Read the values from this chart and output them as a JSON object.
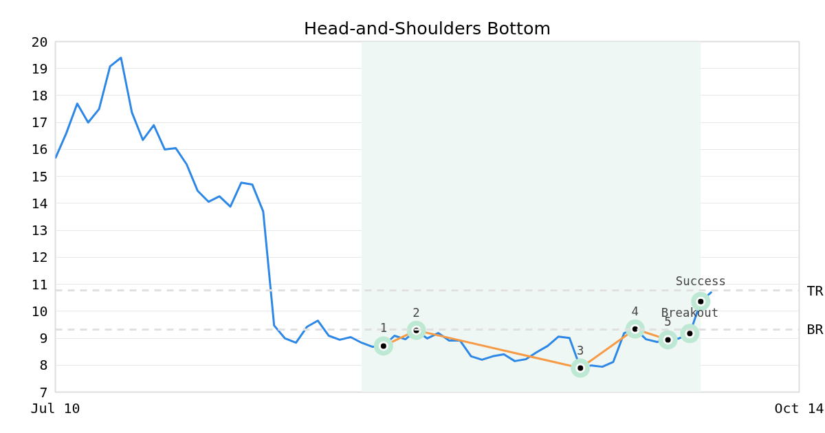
{
  "chart_data": {
    "type": "line",
    "title": "Head-and-Shoulders Bottom",
    "categories": [
      "Jul 10",
      null,
      null,
      null,
      null,
      null,
      null,
      null,
      null,
      null,
      null,
      null,
      null,
      null,
      null,
      null,
      null,
      null,
      null,
      null,
      null,
      null,
      null,
      null,
      null,
      null,
      null,
      null,
      null,
      null,
      null,
      null,
      null,
      null,
      null,
      null,
      null,
      null,
      null,
      null,
      null,
      null,
      null,
      null,
      null,
      null,
      null,
      null,
      null,
      null,
      null,
      null,
      null,
      null,
      null,
      null,
      null,
      null,
      null,
      null,
      null,
      null,
      null,
      null,
      null,
      null,
      null,
      null,
      "Oct 14"
    ],
    "ylim": [
      7,
      20
    ],
    "yticks": [
      7,
      8,
      9,
      10,
      11,
      12,
      13,
      14,
      15,
      16,
      17,
      18,
      19,
      20
    ],
    "grid": "y",
    "series": [
      {
        "color": "#2d87e6",
        "values": [
          15.67,
          16.6,
          17.7,
          17.0,
          17.5,
          19.08,
          19.4,
          17.37,
          16.35,
          16.9,
          16.0,
          16.05,
          15.45,
          14.47,
          14.06,
          14.26,
          13.88,
          14.77,
          14.7,
          13.7,
          9.47,
          8.99,
          8.83,
          9.42,
          9.65,
          9.09,
          8.94,
          9.04,
          8.83,
          8.68,
          8.71,
          9.09,
          8.96,
          9.29,
          8.99,
          9.19,
          8.91,
          8.91,
          8.33,
          8.2,
          8.33,
          8.4,
          8.15,
          8.22,
          8.48,
          8.71,
          9.06,
          9.01,
          7.89,
          7.99,
          7.94,
          8.12,
          9.19,
          9.34,
          8.96,
          8.86,
          8.94,
          8.99,
          9.17,
          10.36,
          10.72,
          null,
          null,
          null,
          null,
          null,
          null,
          null,
          null
        ]
      },
      {
        "type": "line",
        "color": "#f79a45",
        "marker": "circle",
        "values": [
          null,
          null,
          null,
          null,
          null,
          null,
          null,
          null,
          null,
          null,
          null,
          null,
          null,
          null,
          null,
          null,
          null,
          null,
          null,
          null,
          null,
          null,
          null,
          null,
          null,
          null,
          null,
          null,
          null,
          null,
          8.71,
          null,
          null,
          9.29,
          null,
          null,
          null,
          null,
          null,
          null,
          null,
          null,
          null,
          null,
          null,
          null,
          null,
          null,
          7.89,
          null,
          null,
          null,
          null,
          9.34,
          null,
          null,
          8.94,
          null,
          null,
          null,
          null,
          null,
          null,
          null,
          null,
          null,
          null,
          null,
          null
        ]
      },
      {
        "type": "scatter",
        "color": "#000000",
        "marker": "circle",
        "values": [
          null,
          null,
          null,
          null,
          null,
          null,
          null,
          null,
          null,
          null,
          null,
          null,
          null,
          null,
          null,
          null,
          null,
          null,
          null,
          null,
          null,
          null,
          null,
          null,
          null,
          null,
          null,
          null,
          null,
          null,
          null,
          null,
          null,
          null,
          null,
          null,
          null,
          null,
          null,
          null,
          null,
          null,
          null,
          null,
          null,
          null,
          null,
          null,
          null,
          null,
          null,
          null,
          null,
          null,
          null,
          null,
          null,
          null,
          9.17,
          10.36,
          null,
          null,
          null,
          null,
          null,
          null,
          null,
          null,
          null
        ]
      }
    ],
    "annotations": [
      "1",
      "2",
      "3",
      "4",
      "5",
      "Breakout",
      "Success"
    ],
    "ref_lines": [
      {
        "axis": "y",
        "value": 10.77,
        "label": "TR",
        "color": "#e0e0e0",
        "line_style": "dashed"
      },
      {
        "axis": "y",
        "value": 9.32,
        "label": "BR",
        "color": "#e0e0e0",
        "line_style": "dashed"
      }
    ]
  }
}
